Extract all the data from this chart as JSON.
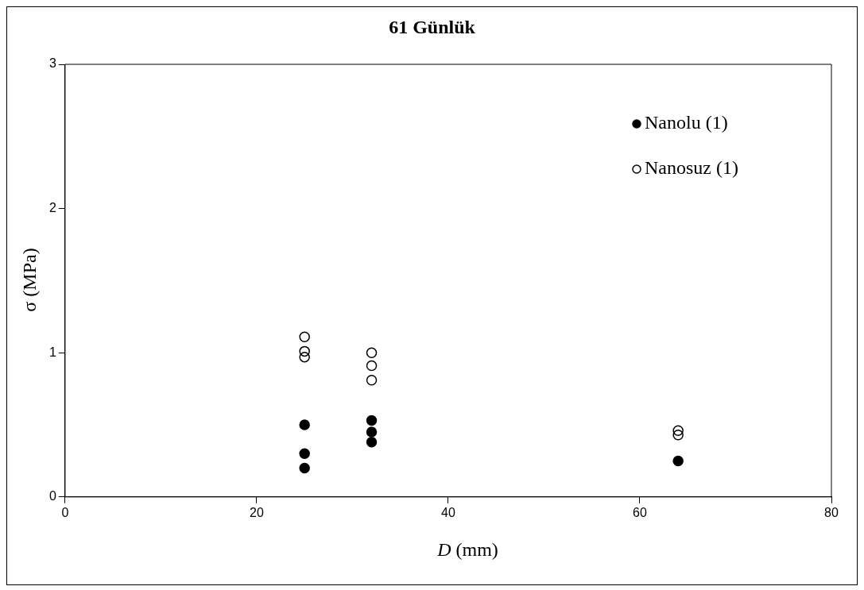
{
  "chart_data": {
    "type": "scatter",
    "title": "61 Günlük",
    "xlabel": "D (mm)",
    "ylabel": "σ (MPa)",
    "xlim": [
      0,
      80
    ],
    "xticks": [
      0,
      20,
      40,
      60,
      80
    ],
    "ylim": [
      0,
      3
    ],
    "yticks": [
      0,
      1,
      2,
      3
    ],
    "grid": false,
    "legend": "top right",
    "series": [
      {
        "name": "Nanolu (1)",
        "color": "#000000",
        "marker": "circle",
        "x": [
          25,
          25,
          25,
          32,
          32,
          32,
          64
        ],
        "values": [
          0.5,
          0.3,
          0.2,
          0.53,
          0.45,
          0.38,
          0.25
        ]
      },
      {
        "name": "Nanosuz (1)",
        "color": "#000000",
        "marker": "circle",
        "x": [
          25,
          25,
          25,
          32,
          32,
          32,
          64,
          64
        ],
        "values": [
          1.11,
          1.01,
          0.97,
          1.0,
          0.91,
          0.81,
          0.46,
          0.43
        ]
      }
    ]
  }
}
